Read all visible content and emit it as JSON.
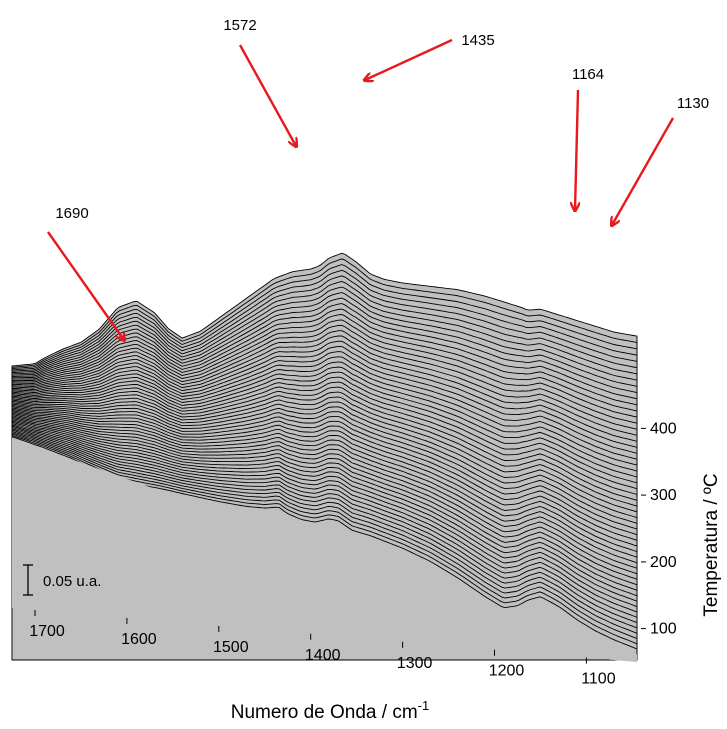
{
  "chart_data": {
    "type": "area",
    "xlabel": "Numero de Onda / cm",
    "xlabel_superscript": "-1",
    "zlabel": "Temperatura / ºC",
    "x_ticks": [
      1700,
      1600,
      1500,
      1400,
      1300,
      1200,
      1100
    ],
    "x_range": [
      1725,
      1045
    ],
    "x_reversed": true,
    "z_ticks": [
      100,
      200,
      300,
      400
    ],
    "z_range": [
      50,
      450
    ],
    "scale_bar": {
      "value": 0.05,
      "label": "0.05 u.a."
    },
    "fill_color": "#c0c0c0",
    "line_color": "#000000",
    "arrow_color": "#e8191d",
    "series_count": 56,
    "series_temperature_start": 50,
    "series_temperature_end": 450,
    "surface_baseline": [
      [
        1725,
        0.0
      ],
      [
        1690,
        0.0
      ],
      [
        1660,
        -0.01
      ],
      [
        1630,
        -0.04
      ],
      [
        1610,
        -0.06
      ],
      [
        1590,
        -0.04
      ],
      [
        1560,
        0.0
      ],
      [
        1530,
        0.03
      ],
      [
        1500,
        0.06
      ],
      [
        1470,
        0.1
      ],
      [
        1450,
        0.14
      ],
      [
        1435,
        0.19
      ],
      [
        1425,
        0.16
      ],
      [
        1410,
        0.15
      ],
      [
        1395,
        0.17
      ],
      [
        1380,
        0.24
      ],
      [
        1370,
        0.25
      ],
      [
        1355,
        0.21
      ],
      [
        1335,
        0.22
      ],
      [
        1300,
        0.21
      ],
      [
        1270,
        0.18
      ],
      [
        1240,
        0.12
      ],
      [
        1210,
        0.04
      ],
      [
        1190,
        0.0
      ],
      [
        1175,
        0.06
      ],
      [
        1164,
        0.14
      ],
      [
        1150,
        0.21
      ],
      [
        1130,
        0.18
      ],
      [
        1110,
        0.12
      ],
      [
        1090,
        0.08
      ],
      [
        1070,
        0.06
      ],
      [
        1045,
        0.05
      ]
    ],
    "surface_top": [
      [
        1725,
        0.0
      ],
      [
        1700,
        0.02
      ],
      [
        1690,
        0.05
      ],
      [
        1670,
        0.1
      ],
      [
        1650,
        0.14
      ],
      [
        1630,
        0.21
      ],
      [
        1610,
        0.32
      ],
      [
        1600,
        0.34
      ],
      [
        1590,
        0.36
      ],
      [
        1570,
        0.31
      ],
      [
        1555,
        0.24
      ],
      [
        1540,
        0.2
      ],
      [
        1520,
        0.24
      ],
      [
        1500,
        0.31
      ],
      [
        1480,
        0.38
      ],
      [
        1460,
        0.45
      ],
      [
        1440,
        0.52
      ],
      [
        1420,
        0.56
      ],
      [
        1400,
        0.58
      ],
      [
        1390,
        0.6
      ],
      [
        1380,
        0.64
      ],
      [
        1365,
        0.67
      ],
      [
        1350,
        0.63
      ],
      [
        1335,
        0.58
      ],
      [
        1320,
        0.56
      ],
      [
        1300,
        0.55
      ],
      [
        1270,
        0.545
      ],
      [
        1240,
        0.54
      ],
      [
        1210,
        0.52
      ],
      [
        1190,
        0.5
      ],
      [
        1170,
        0.48
      ],
      [
        1164,
        0.47
      ],
      [
        1150,
        0.48
      ],
      [
        1130,
        0.46
      ],
      [
        1110,
        0.44
      ],
      [
        1090,
        0.42
      ],
      [
        1070,
        0.4
      ],
      [
        1045,
        0.39
      ]
    ],
    "annotations": [
      {
        "label": "1690",
        "x": 1690
      },
      {
        "label": "1572",
        "x": 1572
      },
      {
        "label": "1435",
        "x": 1435
      },
      {
        "label": "1164",
        "x": 1164
      },
      {
        "label": "1130",
        "x": 1130
      }
    ]
  }
}
